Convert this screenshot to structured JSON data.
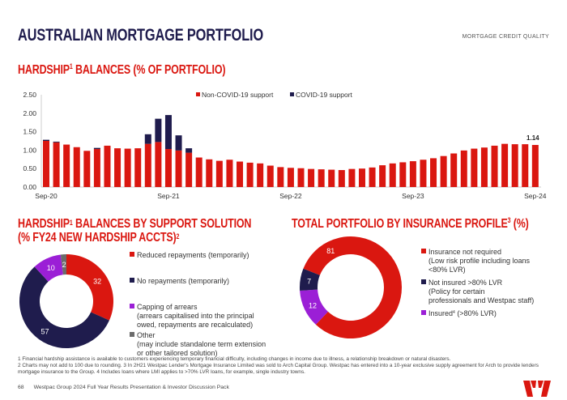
{
  "title": "AUSTRALIAN MORTGAGE PORTFOLIO",
  "section_label": "MORTGAGE CREDIT QUALITY",
  "chart1_title": {
    "main": "HARDSHIP",
    "sup": "1",
    "rest": " BALANCES (% OF PORTFOLIO)"
  },
  "chart2_title": {
    "main": "HARDSHIP",
    "sup": "1",
    "rest": " BALANCES BY SUPPORT SOLUTION",
    "line2": "(% FY24 NEW HARDSHIP ACCTS)",
    "sup2": "2"
  },
  "chart3_title": {
    "main": "TOTAL PORTFOLIO BY INSURANCE PROFILE",
    "sup": "3",
    "rest": " (%)"
  },
  "colors": {
    "red": "#da1710",
    "navy": "#1f1c4d",
    "purple": "#9b1fd6",
    "grey": "#6b6b6b"
  },
  "chart_data": [
    {
      "type": "bar",
      "stacked": true,
      "ylim": [
        0,
        2.5
      ],
      "yticks": [
        "0.00",
        "0.50",
        "1.00",
        "1.50",
        "2.00",
        "2.50"
      ],
      "xtick_labels": [
        "Sep-20",
        "Sep-21",
        "Sep-22",
        "Sep-23",
        "Sep-24"
      ],
      "legend_position": "top-right",
      "last_label": "1.14",
      "categories": [
        "Sep-20",
        "Oct-20",
        "Nov-20",
        "Dec-20",
        "Jan-21",
        "Feb-21",
        "Mar-21",
        "Apr-21",
        "May-21",
        "Jun-21",
        "Jul-21",
        "Aug-21",
        "Sep-21",
        "Oct-21",
        "Nov-21",
        "Dec-21",
        "Jan-22",
        "Feb-22",
        "Mar-22",
        "Apr-22",
        "May-22",
        "Jun-22",
        "Jul-22",
        "Aug-22",
        "Sep-22",
        "Oct-22",
        "Nov-22",
        "Dec-22",
        "Jan-23",
        "Feb-23",
        "Mar-23",
        "Apr-23",
        "May-23",
        "Jun-23",
        "Jul-23",
        "Aug-23",
        "Sep-23",
        "Oct-23",
        "Nov-23",
        "Dec-23",
        "Jan-24",
        "Feb-24",
        "Mar-24",
        "Apr-24",
        "May-24",
        "Jun-24",
        "Jul-24",
        "Aug-24",
        "Sep-24"
      ],
      "series": [
        {
          "name": "Non-COVID-19 support",
          "color": "#da1710",
          "values": [
            1.25,
            1.21,
            1.15,
            1.08,
            0.98,
            1.03,
            1.12,
            1.05,
            1.04,
            1.05,
            1.17,
            1.22,
            1.03,
            0.99,
            0.93,
            0.8,
            0.75,
            0.71,
            0.74,
            0.69,
            0.66,
            0.64,
            0.58,
            0.54,
            0.52,
            0.51,
            0.49,
            0.48,
            0.47,
            0.46,
            0.49,
            0.5,
            0.53,
            0.59,
            0.64,
            0.67,
            0.7,
            0.74,
            0.78,
            0.84,
            0.91,
            0.99,
            1.04,
            1.07,
            1.12,
            1.17,
            1.16,
            1.16,
            1.14
          ]
        },
        {
          "name": "COVID-19 support",
          "color": "#1f1c4d",
          "values": [
            0.03,
            0.02,
            0,
            0,
            0,
            0.03,
            0,
            0,
            0,
            0,
            0.26,
            0.63,
            0.92,
            0.41,
            0.12,
            0,
            0,
            0,
            0,
            0,
            0,
            0,
            0,
            0,
            0,
            0,
            0,
            0,
            0,
            0,
            0,
            0,
            0,
            0,
            0,
            0,
            0,
            0,
            0,
            0,
            0,
            0,
            0,
            0,
            0,
            0,
            0,
            0,
            0
          ]
        }
      ]
    },
    {
      "type": "pie",
      "donut": true,
      "slices": [
        {
          "label": "Reduced repayments (temporarily)",
          "value": 32,
          "color": "#da1710"
        },
        {
          "label": "No repayments (temporarily)",
          "value": 57,
          "color": "#1f1c4d"
        },
        {
          "label": "Capping of arrears",
          "sub": [
            "(arrears capitalised into the principal",
            "owed, repayments are recalculated)"
          ],
          "value": 10,
          "color": "#9b1fd6"
        },
        {
          "label": "Other",
          "sub": [
            "(may include standalone term extension",
            "or other tailored solution)"
          ],
          "value": 2,
          "color": "#6b6b6b"
        }
      ]
    },
    {
      "type": "pie",
      "donut": true,
      "slices": [
        {
          "label": "Insurance not required",
          "sub": [
            "(Low risk profile including loans",
            "<80% LVR)"
          ],
          "value": 81,
          "color": "#da1710"
        },
        {
          "label": "Not insured >80% LVR",
          "sub": [
            "(Policy for certain",
            "professionals and Westpac staff)"
          ],
          "value": 7,
          "color": "#1f1c4d"
        },
        {
          "label": "Insured",
          "sup": "4",
          "label_rest": " (>80% LVR)",
          "value": 12,
          "color": "#9b1fd6"
        }
      ]
    }
  ],
  "footnotes": [
    "1 Financial hardship assistance is available to customers experiencing temporary financial difficulty, including changes in income due to illness, a relationship breakdown or natural disasters.",
    "2 Charts may not add to 100 due to rounding. 3 In 2H21 Westpac Lender's Mortgage Insurance Limited was sold to Arch Capital Group. Westpac has entered into a 10-year exclusive supply agreement for Arch to provide lenders mortgage insurance to the Group. 4 Includes loans where LMI applies to >70% LVR loans, for example, single industry towns."
  ],
  "footer": {
    "page": "68",
    "text": "Westpac Group 2024 Full Year Results Presentation & Investor Discussion Pack"
  },
  "logo": "Westpac W logo"
}
